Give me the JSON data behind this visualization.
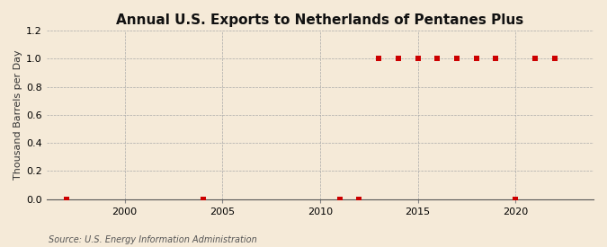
{
  "title": "Annual U.S. Exports to Netherlands of Pentanes Plus",
  "ylabel": "Thousand Barrels per Day",
  "source": "Source: U.S. Energy Information Administration",
  "background_color": "#f5ead8",
  "plot_bg_color": "#f5ead8",
  "years": [
    1997,
    2004,
    2011,
    2012,
    2013,
    2014,
    2015,
    2016,
    2017,
    2018,
    2019,
    2020,
    2021,
    2022
  ],
  "values": [
    0.0,
    0.0,
    0.0,
    0.0,
    1.0,
    1.0,
    1.0,
    1.0,
    1.0,
    1.0,
    1.0,
    0.0,
    1.0,
    1.0
  ],
  "marker_color": "#cc0000",
  "marker_size": 4,
  "xlim": [
    1996,
    2024
  ],
  "ylim": [
    0.0,
    1.2
  ],
  "xticks": [
    2000,
    2005,
    2010,
    2015,
    2020
  ],
  "yticks": [
    0.0,
    0.2,
    0.4,
    0.6,
    0.8,
    1.0,
    1.2
  ],
  "title_fontsize": 11,
  "label_fontsize": 8,
  "tick_fontsize": 8,
  "source_fontsize": 7
}
